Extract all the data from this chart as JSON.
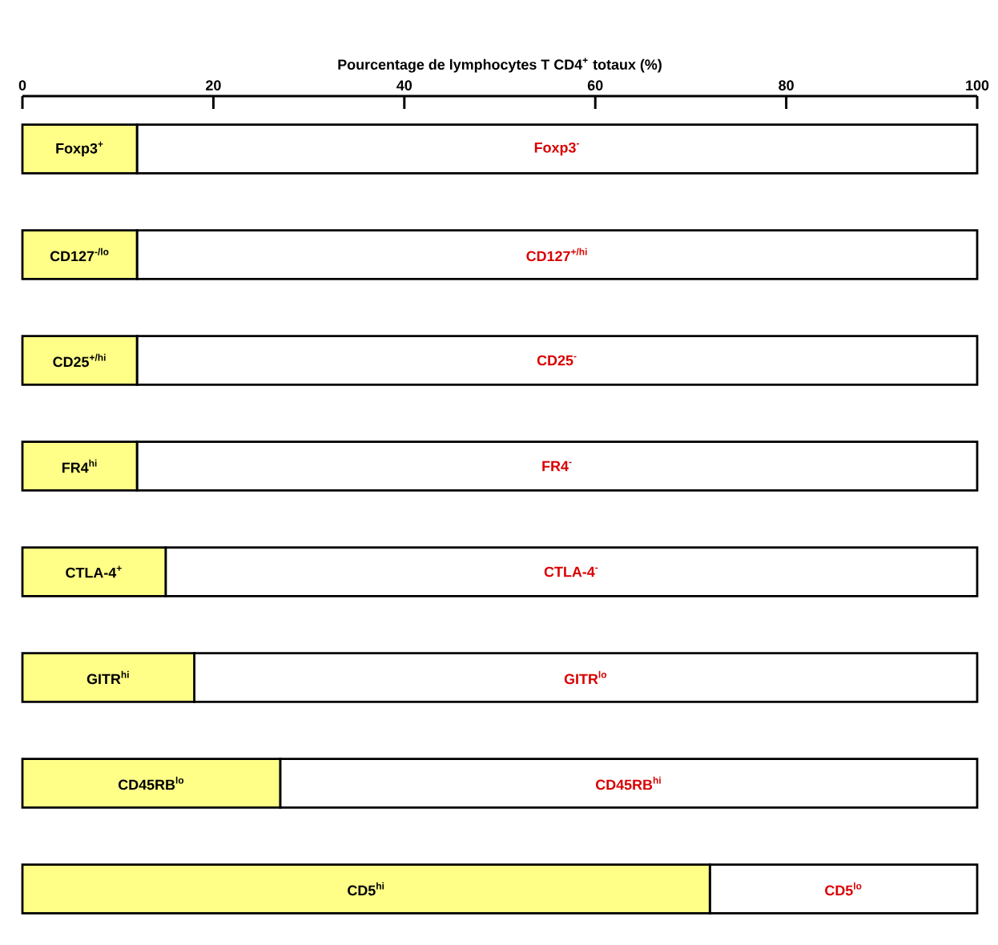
{
  "chart_data": {
    "type": "bar",
    "orientation": "horizontal",
    "stacked": true,
    "xlabel": "Pourcentage de lymphocytes T CD4$^{+}$ totaux (%)",
    "categories": [
      null,
      null,
      null,
      null,
      null,
      null,
      null,
      null
    ],
    "xlim": [
      0,
      100
    ],
    "xticks": [
      0,
      20,
      40,
      60,
      80,
      100
    ],
    "series": [
      {
        "color": "#ffff88",
        "values": [
          12,
          12,
          12,
          12,
          15,
          18,
          27,
          72
        ],
        "value_labels": [
          "Foxp3$^{+}$",
          "CD127$^{-/lo}$",
          "CD25$^{+/hi}$",
          "FR4$^{hi}$",
          "CTLA-4$^{+}$",
          "GITR$^{hi}$",
          "CD45RB$^{lo}$",
          "CD5$^{hi}$"
        ]
      },
      {
        "color": "#ffffff",
        "values": [
          88,
          88,
          88,
          88,
          85,
          82,
          73,
          28
        ],
        "value_labels": [
          "Foxp3$^{-}$",
          "CD127$^{+/hi}$",
          "CD25$^{-}$",
          "FR4$^{-}$",
          "CTLA-4$^{-}$",
          "GITR$^{lo}$",
          "CD45RB$^{hi}$",
          "CD5$^{lo}$"
        ]
      }
    ]
  }
}
